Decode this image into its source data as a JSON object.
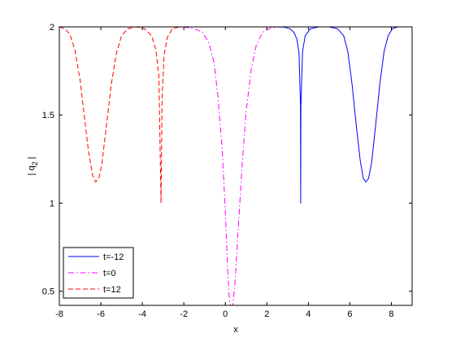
{
  "chart_data": {
    "type": "line",
    "xlabel": "x",
    "ylabel": "| q",
    "ylabel_sub": "2",
    "ylabel_end": "|",
    "xlim": [
      -8,
      9
    ],
    "ylim": [
      0.42,
      2
    ],
    "xticks": [
      -8,
      -6,
      -4,
      -2,
      0,
      2,
      4,
      6,
      8
    ],
    "yticks": [
      0.5,
      1,
      1.5,
      2
    ],
    "ytick_labels": [
      "0.5",
      "1",
      "1.5",
      "2"
    ],
    "legend_position": "bottom-left",
    "series": [
      {
        "name": "t=-12",
        "color": "#0000ff",
        "dash": "solid",
        "points": [
          [
            2.4,
            2.0
          ],
          [
            2.8,
            1.999
          ],
          [
            3.1,
            1.99
          ],
          [
            3.3,
            1.97
          ],
          [
            3.45,
            1.93
          ],
          [
            3.55,
            1.85
          ],
          [
            3.62,
            1.55
          ],
          [
            3.63,
            1.0
          ],
          [
            3.64,
            1.55
          ],
          [
            3.72,
            1.86
          ],
          [
            3.85,
            1.95
          ],
          [
            4.1,
            1.99
          ],
          [
            4.5,
            2.0
          ],
          [
            5.0,
            2.0
          ],
          [
            5.4,
            1.99
          ],
          [
            5.7,
            1.95
          ],
          [
            5.9,
            1.86
          ],
          [
            6.1,
            1.68
          ],
          [
            6.3,
            1.45
          ],
          [
            6.5,
            1.24
          ],
          [
            6.65,
            1.14
          ],
          [
            6.77,
            1.12
          ],
          [
            6.9,
            1.14
          ],
          [
            7.05,
            1.23
          ],
          [
            7.25,
            1.45
          ],
          [
            7.45,
            1.68
          ],
          [
            7.65,
            1.86
          ],
          [
            7.85,
            1.95
          ],
          [
            8.05,
            1.99
          ],
          [
            8.3,
            2.0
          ],
          [
            8.6,
            2.0
          ]
        ]
      },
      {
        "name": "t=0",
        "color": "#ff00ff",
        "dash": "dashdot",
        "points": [
          [
            -2.6,
            2.0
          ],
          [
            -2.0,
            1.999
          ],
          [
            -1.5,
            1.99
          ],
          [
            -1.1,
            1.97
          ],
          [
            -0.8,
            1.91
          ],
          [
            -0.55,
            1.8
          ],
          [
            -0.35,
            1.6
          ],
          [
            -0.15,
            1.3
          ],
          [
            0.0,
            0.95
          ],
          [
            0.12,
            0.6
          ],
          [
            0.2,
            0.44
          ],
          [
            0.25,
            0.42
          ],
          [
            0.35,
            0.42
          ],
          [
            0.45,
            0.52
          ],
          [
            0.6,
            0.82
          ],
          [
            0.8,
            1.2
          ],
          [
            1.0,
            1.52
          ],
          [
            1.25,
            1.76
          ],
          [
            1.5,
            1.9
          ],
          [
            1.8,
            1.97
          ],
          [
            2.2,
            1.995
          ],
          [
            2.7,
            2.0
          ]
        ]
      },
      {
        "name": "t=12",
        "color": "#ff0000",
        "dash": "dashed",
        "points": [
          [
            -8.0,
            2.0
          ],
          [
            -7.75,
            1.99
          ],
          [
            -7.5,
            1.96
          ],
          [
            -7.25,
            1.87
          ],
          [
            -7.0,
            1.7
          ],
          [
            -6.8,
            1.5
          ],
          [
            -6.6,
            1.3
          ],
          [
            -6.4,
            1.16
          ],
          [
            -6.25,
            1.12
          ],
          [
            -6.1,
            1.14
          ],
          [
            -5.95,
            1.22
          ],
          [
            -5.75,
            1.42
          ],
          [
            -5.5,
            1.67
          ],
          [
            -5.25,
            1.85
          ],
          [
            -5.0,
            1.95
          ],
          [
            -4.7,
            1.99
          ],
          [
            -4.3,
            2.0
          ],
          [
            -3.9,
            1.99
          ],
          [
            -3.55,
            1.95
          ],
          [
            -3.35,
            1.87
          ],
          [
            -3.2,
            1.72
          ],
          [
            -3.1,
            1.0
          ],
          [
            -3.05,
            1.6
          ],
          [
            -2.95,
            1.84
          ],
          [
            -2.8,
            1.94
          ],
          [
            -2.55,
            1.99
          ],
          [
            -2.2,
            2.0
          ],
          [
            -1.8,
            2.0
          ]
        ]
      }
    ]
  }
}
